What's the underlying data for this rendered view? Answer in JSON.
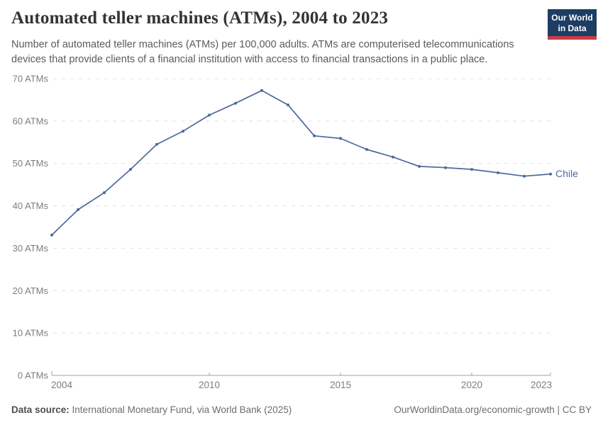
{
  "header": {
    "title": "Automated teller machines (ATMs), 2004 to 2023",
    "subtitle": "Number of automated teller machines (ATMs) per 100,000 adults. ATMs are computerised telecommunications devices that provide clients of a financial institution with access to financial transactions in a public place.",
    "logo": {
      "line1": "Our World",
      "line2": "in Data"
    }
  },
  "footer": {
    "source_label": "Data source:",
    "source_text": " International Monetary Fund, via World Bank (2025)",
    "right_text": "OurWorldinData.org/economic-growth | CC BY"
  },
  "colors": {
    "line": "#4c6a9c",
    "gridline": "#e0e0e0",
    "axis": "#a1a1a1",
    "axis_label": "#7d7d7d",
    "logo_navy": "#1d3d63",
    "logo_red": "#cb3b47"
  },
  "chart_data": {
    "type": "line",
    "title": "Automated teller machines (ATMs), 2004 to 2023",
    "xlabel": "",
    "ylabel": "ATMs per 100,000 adults",
    "x": [
      2004,
      2005,
      2006,
      2007,
      2008,
      2009,
      2010,
      2011,
      2012,
      2013,
      2014,
      2015,
      2016,
      2017,
      2018,
      2019,
      2020,
      2021,
      2022,
      2023
    ],
    "series": [
      {
        "name": "Chile",
        "color": "#4c6a9c",
        "values": [
          33.1,
          39.1,
          43.1,
          48.6,
          54.5,
          57.6,
          61.4,
          64.2,
          67.2,
          63.8,
          56.5,
          55.9,
          53.3,
          51.5,
          49.3,
          49.0,
          48.6,
          47.8,
          47.0,
          47.5
        ]
      }
    ],
    "ylim": [
      0,
      70
    ],
    "yticks": [
      0,
      10,
      20,
      30,
      40,
      50,
      60,
      70
    ],
    "ytick_suffix": " ATMs",
    "xticks": [
      2004,
      2010,
      2015,
      2020,
      2023
    ],
    "grid": "horizontal-dashed",
    "legend": "line-end-label"
  }
}
